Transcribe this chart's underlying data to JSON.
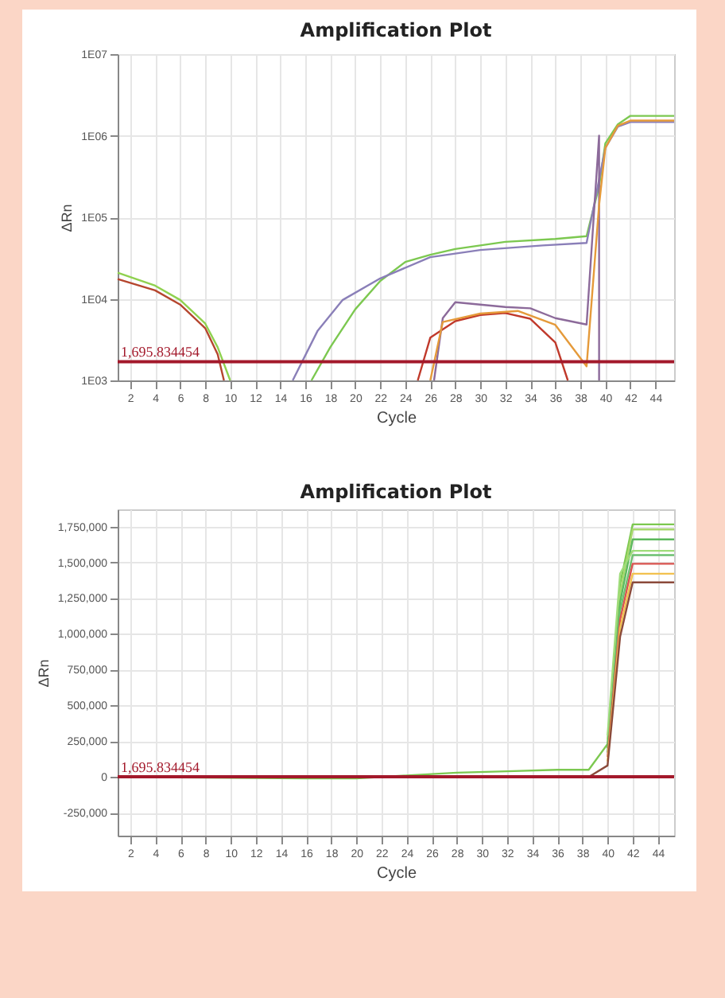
{
  "chart_data": [
    {
      "type": "line",
      "title": "Amplification Plot",
      "xlabel": "Cycle",
      "ylabel": "ΔRn",
      "log": "y",
      "grid": true,
      "xlim": [
        1,
        45.5
      ],
      "xticks": [
        2,
        4,
        6,
        8,
        10,
        12,
        14,
        16,
        18,
        20,
        22,
        24,
        26,
        28,
        30,
        32,
        34,
        36,
        38,
        40,
        42,
        44
      ],
      "ylim": [
        1000,
        10000000
      ],
      "yticks": [
        {
          "value": 1000,
          "label": "1E03"
        },
        {
          "value": 10000,
          "label": "1E04"
        },
        {
          "value": 100000,
          "label": "1E05"
        },
        {
          "value": 1000000,
          "label": "1E06"
        },
        {
          "value": 10000000,
          "label": "1E07"
        }
      ],
      "ref_lines": [
        {
          "axis": "y",
          "value": 1695.834454,
          "label": "1,695.834454",
          "color": "#a3192b"
        }
      ],
      "series": [
        {
          "color": "#b5462e",
          "x": [
            1,
            4,
            6,
            8,
            9,
            9.5
          ],
          "values": [
            17500,
            12700,
            8500,
            4370,
            2090,
            1000
          ]
        },
        {
          "color": "#8fd14f",
          "x": [
            1,
            4,
            6,
            8,
            9,
            10
          ],
          "values": [
            20900,
            14500,
            9700,
            4990,
            2550,
            1000
          ]
        },
        {
          "color": "#7cc850",
          "x": [
            16.5,
            18,
            20,
            22,
            24,
            26,
            28,
            32,
            36,
            38.5,
            39.5,
            40,
            41,
            42,
            45.5
          ],
          "values": [
            1000,
            2550,
            7450,
            16600,
            28300,
            34700,
            40800,
            50000,
            54200,
            58600,
            241000,
            805000,
            1380000,
            1750000,
            1750000
          ]
        },
        {
          "color": "#8a7fb8",
          "x": [
            15,
            17,
            19,
            22,
            26,
            30,
            35,
            38.5,
            40,
            41,
            42,
            45.5
          ],
          "values": [
            1000,
            4080,
            9700,
            17800,
            32400,
            39700,
            45200,
            48500,
            707000,
            1290000,
            1470000,
            1470000
          ]
        },
        {
          "color": "#c0392b",
          "x": [
            25,
            26,
            28,
            30,
            32,
            34,
            36,
            37
          ],
          "values": [
            1000,
            3340,
            5330,
            6350,
            6700,
            5700,
            2920,
            1000
          ]
        },
        {
          "color": "#8c6a9a",
          "x": [
            26.3,
            27,
            28,
            32,
            34,
            36,
            38.5,
            39.5,
            39.5
          ],
          "values": [
            1000,
            5800,
            9100,
            7950,
            7650,
            5800,
            4850,
            1000000,
            1000
          ]
        },
        {
          "color": "#e59a3a",
          "x": [
            26,
            27,
            30,
            33,
            36,
            38.5,
            39.5,
            40,
            41,
            42,
            45.5
          ],
          "values": [
            1000,
            5200,
            6600,
            7100,
            4800,
            1490,
            141000,
            707000,
            1330000,
            1530000,
            1530000
          ]
        }
      ]
    },
    {
      "type": "line",
      "title": "Amplification Plot",
      "xlabel": "Cycle",
      "ylabel": "ΔRn",
      "grid": true,
      "xlim": [
        1,
        45.3
      ],
      "xticks": [
        2,
        4,
        6,
        8,
        10,
        12,
        14,
        16,
        18,
        20,
        22,
        24,
        26,
        28,
        30,
        32,
        34,
        36,
        38,
        40,
        42,
        44
      ],
      "ylim": [
        -410000,
        1870000
      ],
      "yticks": [
        {
          "value": -250000,
          "label": "-250,000"
        },
        0,
        {
          "value": 250000,
          "label": "250,000"
        },
        {
          "value": 500000,
          "label": "500,000"
        },
        {
          "value": 750000,
          "label": "750,000"
        },
        {
          "value": 1000000,
          "label": "1,000,000"
        },
        {
          "value": 1250000,
          "label": "1,250,000"
        },
        {
          "value": 1500000,
          "label": "1,500,000"
        },
        {
          "value": 1750000,
          "label": "1,750,000"
        }
      ],
      "ref_lines": [
        {
          "axis": "y",
          "value": 1695.834454,
          "label": "1,695.834454",
          "color": "#a3192b"
        }
      ],
      "series": [
        {
          "color": "#7cc850",
          "x": [
            1,
            16,
            20,
            22,
            24,
            26,
            28,
            32,
            36,
            38.5,
            40,
            41,
            42,
            45.3
          ],
          "values": [
            0,
            -10000,
            -10000,
            0,
            10000,
            20000,
            30000,
            40000,
            50000,
            50000,
            230000,
            1350000,
            1765000,
            1765000
          ]
        },
        {
          "color": "#a8d86e",
          "x": [
            40,
            41,
            42,
            45.3
          ],
          "values": [
            260000,
            1280000,
            1730000,
            1730000
          ]
        },
        {
          "color": "#5cb85c",
          "x": [
            40,
            41,
            42,
            45.3
          ],
          "values": [
            200000,
            1220000,
            1660000,
            1660000
          ]
        },
        {
          "color": "#9fdc7a",
          "x": [
            40,
            41,
            42,
            45.3
          ],
          "values": [
            290000,
            1420000,
            1580000,
            1580000
          ]
        },
        {
          "color": "#6cc070",
          "x": [
            40,
            41,
            42,
            45.3
          ],
          "values": [
            170000,
            1160000,
            1550000,
            1550000
          ]
        },
        {
          "color": "#d9534f",
          "x": [
            40,
            41,
            42,
            45.3
          ],
          "values": [
            140000,
            1100000,
            1490000,
            1490000
          ]
        },
        {
          "color": "#f2c14e",
          "x": [
            40,
            41,
            42,
            45.3
          ],
          "values": [
            110000,
            1040000,
            1420000,
            1420000
          ]
        },
        {
          "color": "#8b4a3a",
          "x": [
            38.5,
            40,
            41,
            42,
            45.3
          ],
          "values": [
            0,
            80000,
            980000,
            1360000,
            1360000
          ]
        }
      ]
    }
  ]
}
